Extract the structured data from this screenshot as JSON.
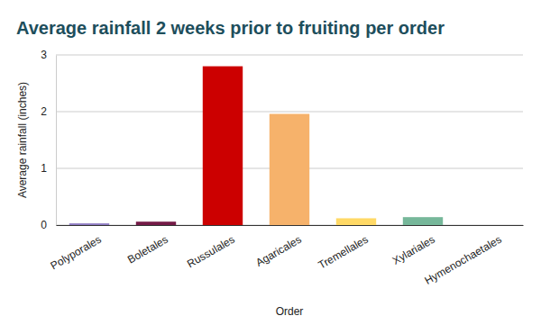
{
  "chart_data": {
    "type": "bar",
    "title": "Average rainfall 2 weeks prior to fruiting per order",
    "x_label": "Order",
    "y_label": "Average rainfall (inches)",
    "categories": [
      "Polyporales",
      "Boletales",
      "Russulales",
      "Agaricales",
      "Tremellales",
      "Xylariales",
      "Hymenochaetales"
    ],
    "values": [
      0.03,
      0.06,
      2.8,
      1.96,
      0.12,
      0.14,
      0
    ],
    "colors": [
      "#8e7cc3",
      "#741b47",
      "#cc0000",
      "#f6b26b",
      "#ffd966",
      "#76b79a",
      "#6fa8dc"
    ],
    "ylim": [
      0,
      3
    ],
    "yticks": [
      0,
      1,
      2,
      3
    ],
    "grid": true
  }
}
